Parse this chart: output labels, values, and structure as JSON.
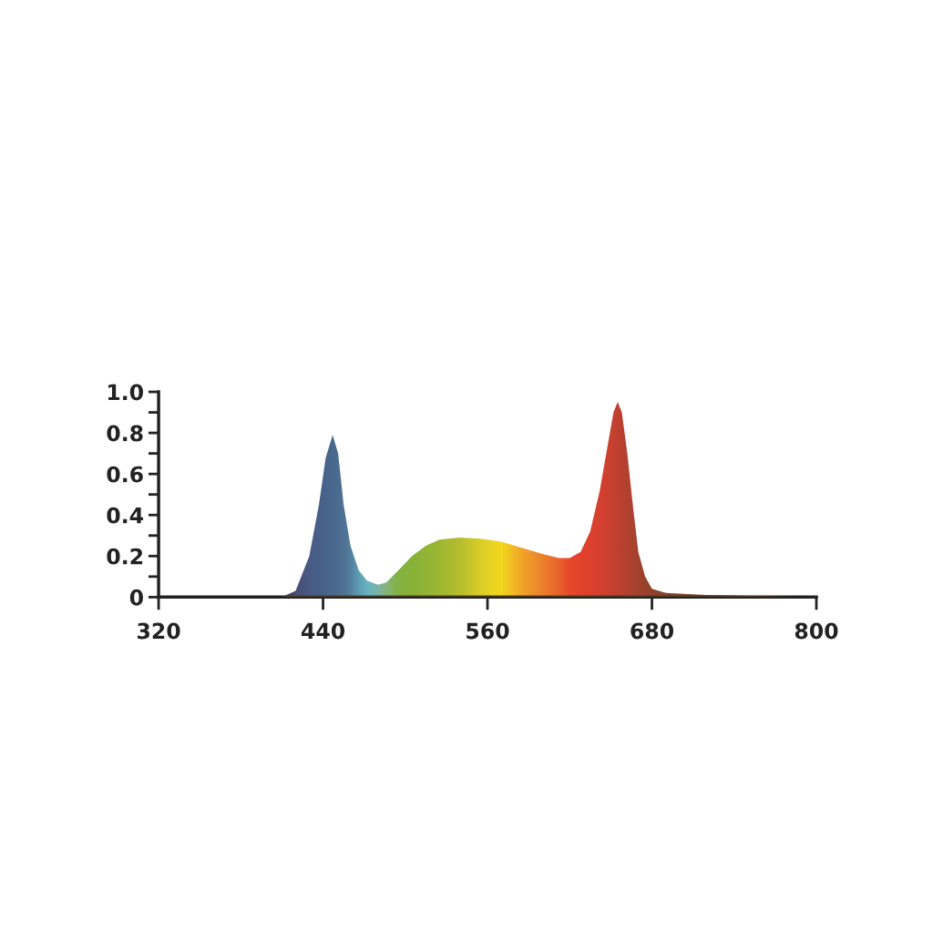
{
  "chart_data": {
    "type": "area",
    "x": [
      320,
      410,
      420,
      430,
      437,
      442,
      447,
      451,
      455,
      460,
      466,
      472,
      480,
      486,
      495,
      505,
      515,
      525,
      540,
      555,
      570,
      585,
      600,
      612,
      620,
      628,
      635,
      642,
      648,
      652,
      655,
      658,
      662,
      666,
      670,
      675,
      680,
      690,
      720,
      760,
      790,
      800
    ],
    "values": [
      0,
      0,
      0.03,
      0.2,
      0.45,
      0.68,
      0.79,
      0.7,
      0.45,
      0.25,
      0.13,
      0.08,
      0.06,
      0.07,
      0.13,
      0.2,
      0.25,
      0.28,
      0.29,
      0.285,
      0.27,
      0.24,
      0.21,
      0.19,
      0.19,
      0.22,
      0.32,
      0.52,
      0.75,
      0.9,
      0.95,
      0.9,
      0.7,
      0.45,
      0.22,
      0.1,
      0.04,
      0.02,
      0.01,
      0.005,
      0,
      0
    ],
    "colors": [
      "#1b2a6b",
      "#1b2a6b",
      "#1f3a8a",
      "#1e4a9e",
      "#1e50a2",
      "#1f55a6",
      "#205aa8",
      "#235fab",
      "#2766b0",
      "#2e78bc",
      "#3a9ed8",
      "#47b7e6",
      "#5fb8c8",
      "#6cb98a",
      "#6ab54a",
      "#6fb63a",
      "#7bb83a",
      "#8cbc36",
      "#a8c530",
      "#d6d92a",
      "#f3e61c",
      "#f2a52a",
      "#ec7a2e",
      "#e7542e",
      "#e3322e",
      "#e02a2e",
      "#d92830",
      "#cf2731",
      "#c42732",
      "#bb2733",
      "#b52733",
      "#ad2733",
      "#a42832",
      "#9b2a31",
      "#8f2b30",
      "#84292c",
      "#7a2a2d",
      "#6e2a2e",
      "#6a2b30",
      "#6a3035",
      "#ffffff",
      "#ffffff"
    ],
    "xlim": [
      320,
      800
    ],
    "xticks": [
      320,
      440,
      560,
      680,
      800
    ],
    "ylim": [
      0,
      1.0
    ],
    "yticks": [
      0,
      {
        "value": 0.1,
        "label": null
      },
      {
        "value": 0.2,
        "label": "0.2"
      },
      {
        "value": 0.3,
        "label": null
      },
      {
        "value": 0.4,
        "label": "0.4"
      },
      {
        "value": 0.5,
        "label": null
      },
      {
        "value": 0.6,
        "label": "0.6"
      },
      {
        "value": 0.7,
        "label": null
      },
      {
        "value": 0.8,
        "label": "0.8"
      },
      {
        "value": 0.9,
        "label": null
      },
      {
        "value": 1.0,
        "label": "1.0"
      }
    ],
    "grid": false
  }
}
